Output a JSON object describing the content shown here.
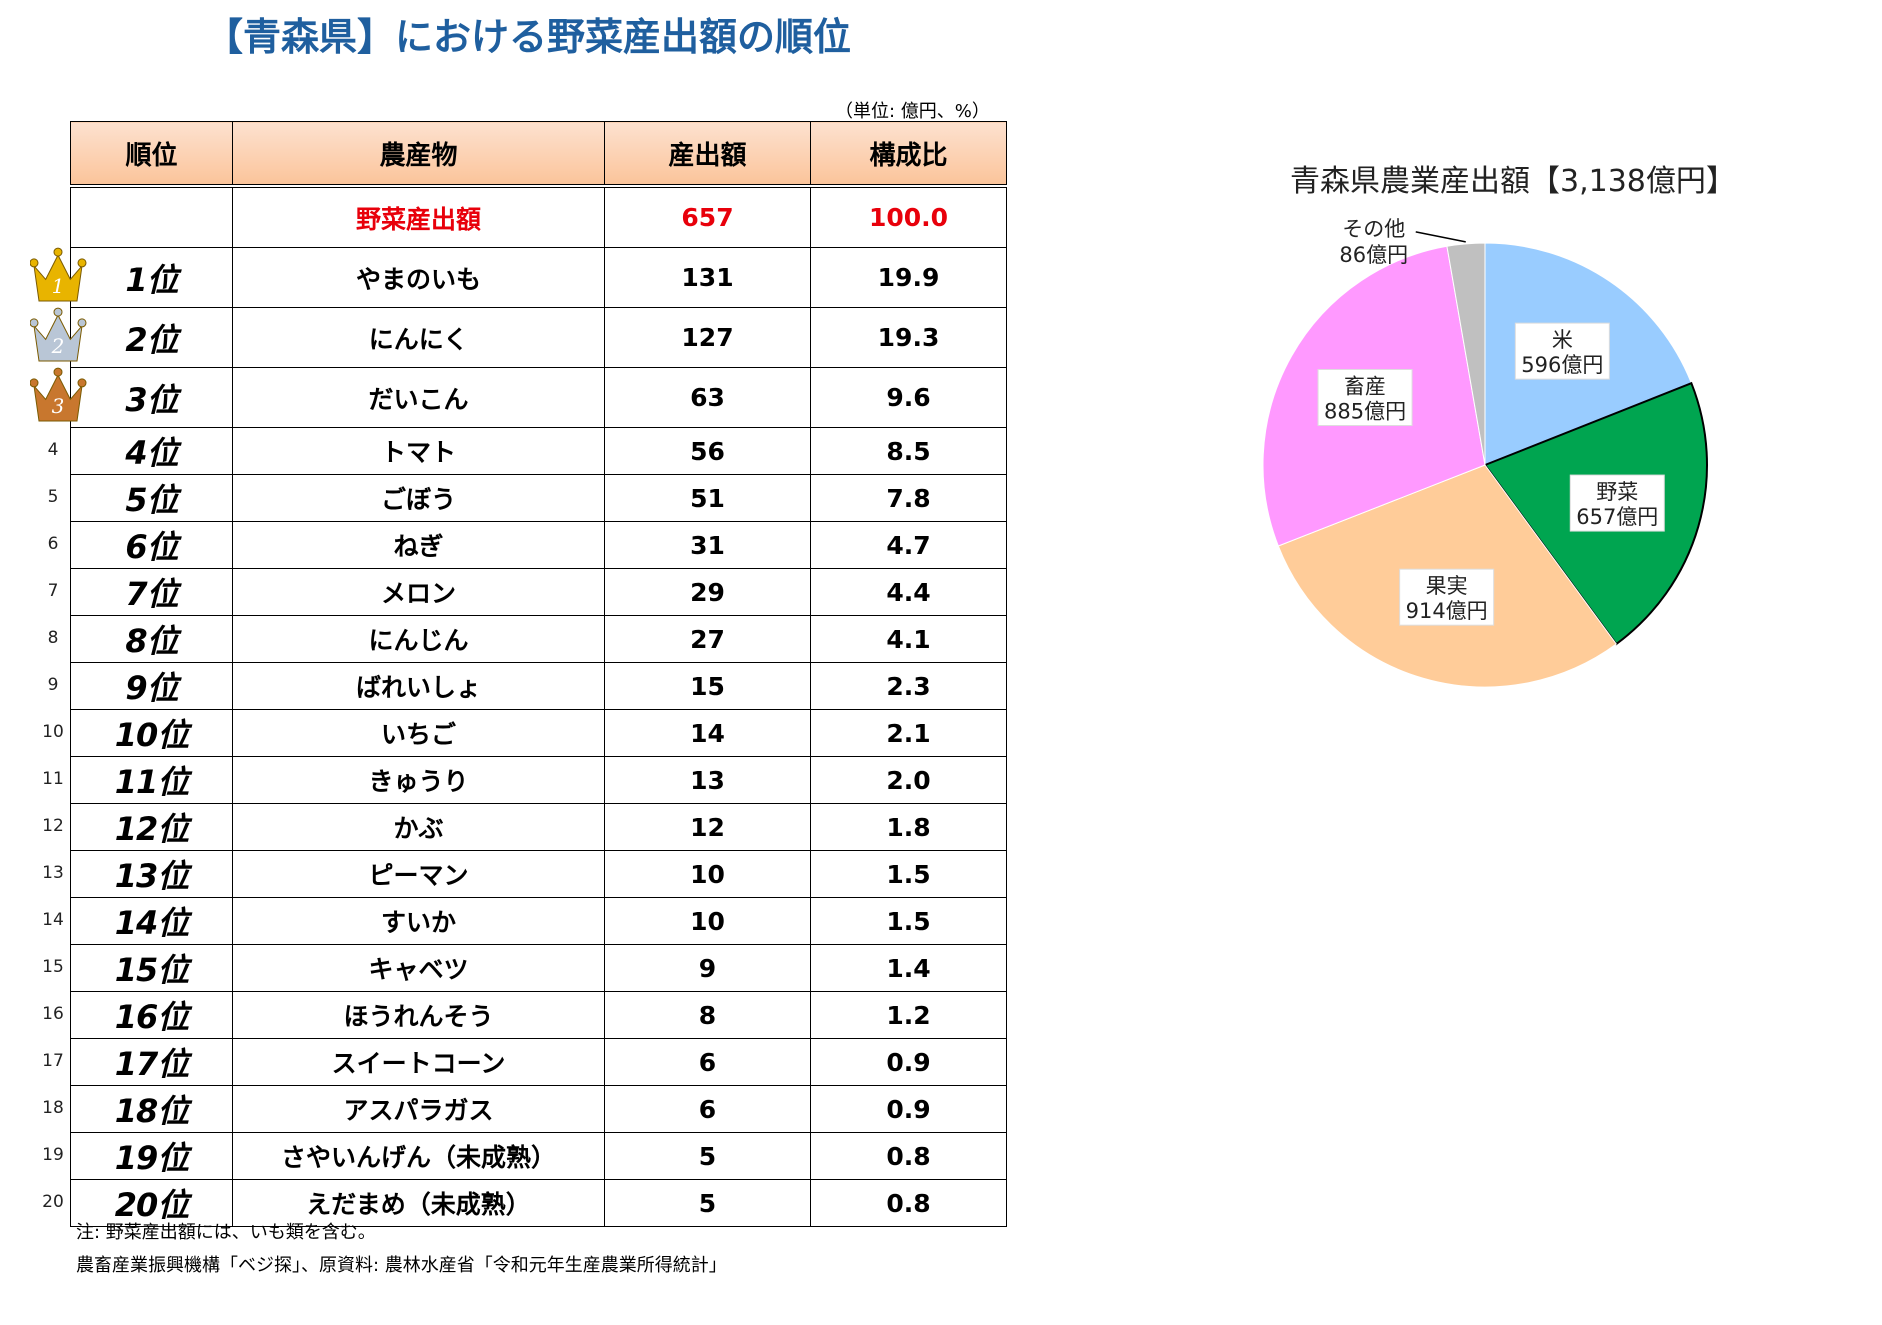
{
  "page_title": "【青森県】における野菜産出額の順位",
  "unit_label": "（単位: 億円、%）",
  "table": {
    "headers": [
      "順位",
      "農産物",
      "産出額",
      "構成比"
    ],
    "total": {
      "label": "野菜産出額",
      "value": "657",
      "ratio": "100.0"
    },
    "rows": [
      {
        "num": "",
        "rank": "1位",
        "item": "やまのいも",
        "value": "131",
        "ratio": "19.9",
        "medal": "gold",
        "medal_num": "1"
      },
      {
        "num": "",
        "rank": "2位",
        "item": "にんにく",
        "value": "127",
        "ratio": "19.3",
        "medal": "silver",
        "medal_num": "2"
      },
      {
        "num": "",
        "rank": "3位",
        "item": "だいこん",
        "value": "63",
        "ratio": "9.6",
        "medal": "bronze",
        "medal_num": "3"
      },
      {
        "num": "4",
        "rank": "4位",
        "item": "トマト",
        "value": "56",
        "ratio": "8.5"
      },
      {
        "num": "5",
        "rank": "5位",
        "item": "ごぼう",
        "value": "51",
        "ratio": "7.8"
      },
      {
        "num": "6",
        "rank": "6位",
        "item": "ねぎ",
        "value": "31",
        "ratio": "4.7"
      },
      {
        "num": "7",
        "rank": "7位",
        "item": "メロン",
        "value": "29",
        "ratio": "4.4"
      },
      {
        "num": "8",
        "rank": "8位",
        "item": "にんじん",
        "value": "27",
        "ratio": "4.1"
      },
      {
        "num": "9",
        "rank": "9位",
        "item": "ばれいしょ",
        "value": "15",
        "ratio": "2.3"
      },
      {
        "num": "10",
        "rank": "10位",
        "item": "いちご",
        "value": "14",
        "ratio": "2.1"
      },
      {
        "num": "11",
        "rank": "11位",
        "item": "きゅうり",
        "value": "13",
        "ratio": "2.0"
      },
      {
        "num": "12",
        "rank": "12位",
        "item": "かぶ",
        "value": "12",
        "ratio": "1.8"
      },
      {
        "num": "13",
        "rank": "13位",
        "item": "ピーマン",
        "value": "10",
        "ratio": "1.5"
      },
      {
        "num": "14",
        "rank": "14位",
        "item": "すいか",
        "value": "10",
        "ratio": "1.5"
      },
      {
        "num": "15",
        "rank": "15位",
        "item": "キャベツ",
        "value": "9",
        "ratio": "1.4"
      },
      {
        "num": "16",
        "rank": "16位",
        "item": "ほうれんそう",
        "value": "8",
        "ratio": "1.2"
      },
      {
        "num": "17",
        "rank": "17位",
        "item": "スイートコーン",
        "value": "6",
        "ratio": "0.9"
      },
      {
        "num": "18",
        "rank": "18位",
        "item": "アスパラガス",
        "value": "6",
        "ratio": "0.9"
      },
      {
        "num": "19",
        "rank": "19位",
        "item": "さやいんげん（未成熟）",
        "value": "5",
        "ratio": "0.8"
      },
      {
        "num": "20",
        "rank": "20位",
        "item": "えだまめ（未成熟）",
        "value": "5",
        "ratio": "0.8"
      }
    ]
  },
  "note": "注: 野菜産出額には、いも類を含む。",
  "source": "農畜産業振興機構「ベジ探」、原資料: 農林水産省「令和元年生産農業所得統計」",
  "medal_colors": {
    "gold": "#e8b400",
    "silver": "#b9c6d6",
    "bronze": "#c8772e"
  },
  "total_color": "#e8000b",
  "title_color": "#1f5f9f",
  "chart_data": {
    "type": "pie",
    "title": "青森県農業産出額【3,138億円】",
    "unit": "億円",
    "slices": [
      {
        "name": "米",
        "value": 596,
        "display": "596億円",
        "color": "#99ccff"
      },
      {
        "name": "野菜",
        "value": 657,
        "display": "657億円",
        "color": "#00a550"
      },
      {
        "name": "果実",
        "value": 914,
        "display": "914億円",
        "color": "#ffcc99"
      },
      {
        "name": "畜産",
        "value": 885,
        "display": "885億円",
        "color": "#ff99ff"
      },
      {
        "name": "その他",
        "value": 86,
        "display": "86億円",
        "color": "#c0c0c0"
      }
    ]
  }
}
